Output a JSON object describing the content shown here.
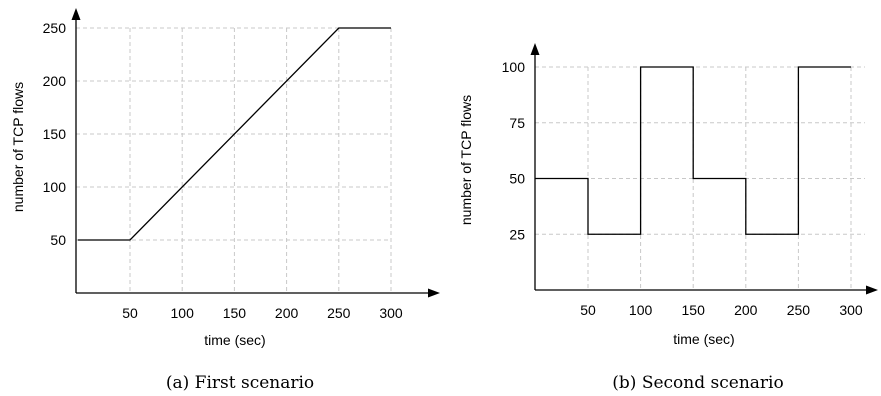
{
  "chart_data": [
    {
      "type": "line",
      "xlabel": "time (sec)",
      "ylabel": "number of TCP flows",
      "caption": "(a)  First scenario",
      "xticks": [
        50,
        100,
        150,
        200,
        250,
        300
      ],
      "yticks": [
        50,
        100,
        150,
        200,
        250
      ],
      "xlim": [
        0,
        330
      ],
      "ylim": [
        0,
        250
      ],
      "grid": true,
      "x": [
        0,
        50,
        250,
        300
      ],
      "y": [
        50,
        50,
        250,
        250
      ]
    },
    {
      "type": "line",
      "xlabel": "time (sec)",
      "ylabel": "number of TCP flows",
      "caption": "(b)  Second scenario",
      "xticks": [
        50,
        100,
        150,
        200,
        250,
        300
      ],
      "yticks": [
        25,
        50,
        75,
        100
      ],
      "xlim": [
        0,
        330
      ],
      "ylim": [
        0,
        100
      ],
      "grid": true,
      "step": true,
      "x": [
        0,
        50,
        50,
        100,
        100,
        150,
        150,
        200,
        200,
        250,
        250,
        300
      ],
      "y": [
        50,
        50,
        25,
        25,
        100,
        100,
        50,
        50,
        25,
        25,
        100,
        100
      ]
    }
  ]
}
